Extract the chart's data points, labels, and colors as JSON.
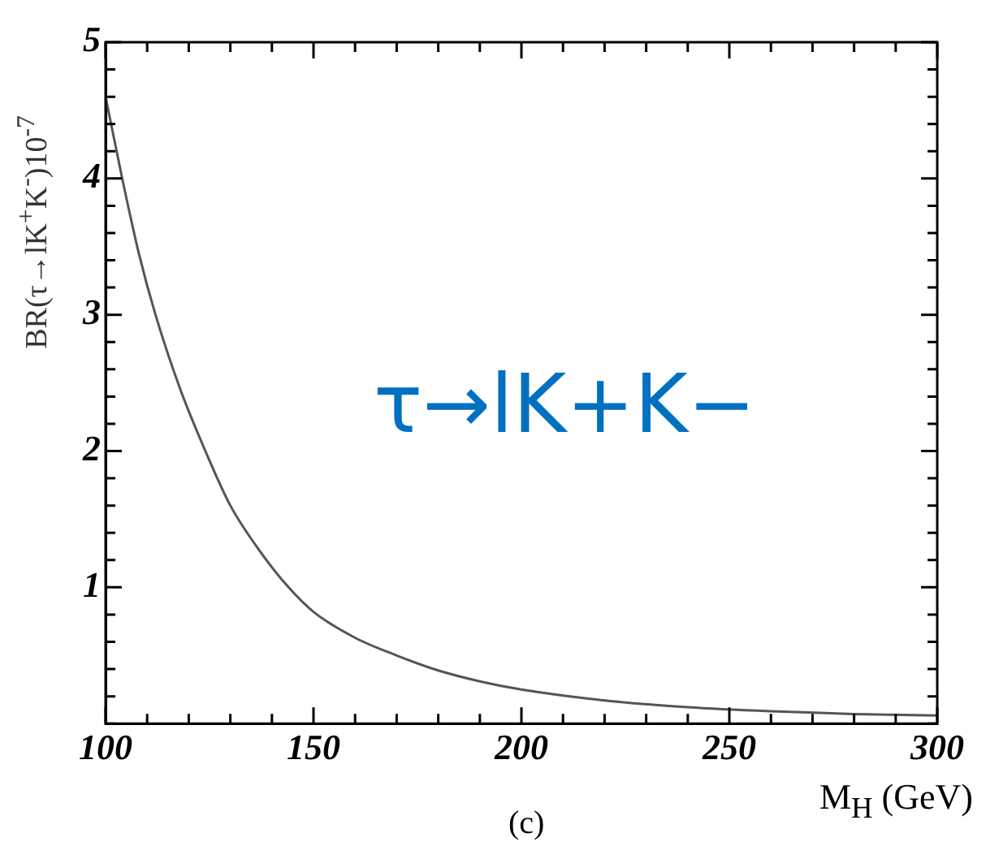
{
  "chart_data": {
    "type": "line",
    "xlabel": "M$_{H}$ (GeV)",
    "ylabel": "BR(τ→lK$^{+}$K$^{-}$)10$^{-7}$",
    "annotations": [
      "τ→lK+K−",
      "(c)"
    ],
    "x": [
      100,
      104,
      108,
      112,
      118,
      124,
      130,
      137,
      144,
      150,
      160,
      170,
      180,
      190,
      200,
      220,
      240,
      260,
      280,
      300
    ],
    "series": [
      {
        "color": "#555555",
        "values": [
          4.6,
          4.0,
          3.45,
          3.0,
          2.45,
          2.0,
          1.6,
          1.27,
          1.0,
          0.82,
          0.63,
          0.5,
          0.39,
          0.31,
          0.25,
          0.17,
          0.12,
          0.09,
          0.07,
          0.06
        ]
      }
    ],
    "xlim": [
      100,
      300
    ],
    "xticks": [
      100,
      {
        "value": 110,
        "label": null
      },
      {
        "value": 120,
        "label": null
      },
      {
        "value": 130,
        "label": null
      },
      {
        "value": 140,
        "label": null
      },
      150,
      {
        "value": 160,
        "label": null
      },
      {
        "value": 170,
        "label": null
      },
      {
        "value": 180,
        "label": null
      },
      {
        "value": 190,
        "label": null
      },
      200,
      {
        "value": 210,
        "label": null
      },
      {
        "value": 220,
        "label": null
      },
      {
        "value": 230,
        "label": null
      },
      {
        "value": 240,
        "label": null
      },
      250,
      {
        "value": 260,
        "label": null
      },
      {
        "value": 270,
        "label": null
      },
      {
        "value": 280,
        "label": null
      },
      {
        "value": 290,
        "label": null
      },
      300
    ],
    "ylim": [
      0,
      5
    ],
    "yticks": [
      {
        "value": 0,
        "label": null
      },
      {
        "value": 0.2,
        "label": null
      },
      {
        "value": 0.4,
        "label": null
      },
      {
        "value": 0.6,
        "label": null
      },
      {
        "value": 0.8,
        "label": null
      },
      1,
      {
        "value": 1.2,
        "label": null
      },
      {
        "value": 1.4,
        "label": null
      },
      {
        "value": 1.6,
        "label": null
      },
      {
        "value": 1.8,
        "label": null
      },
      2,
      {
        "value": 2.2,
        "label": null
      },
      {
        "value": 2.4,
        "label": null
      },
      {
        "value": 2.6,
        "label": null
      },
      {
        "value": 2.8,
        "label": null
      },
      3,
      {
        "value": 3.2,
        "label": null
      },
      {
        "value": 3.4,
        "label": null
      },
      {
        "value": 3.6,
        "label": null
      },
      {
        "value": 3.8,
        "label": null
      },
      4,
      {
        "value": 4.2,
        "label": null
      },
      {
        "value": 4.4,
        "label": null
      },
      {
        "value": 4.6,
        "label": null
      },
      {
        "value": 4.8,
        "label": null
      },
      5
    ],
    "grid": false,
    "legend": false,
    "marker": "none",
    "line_style": "solid"
  }
}
